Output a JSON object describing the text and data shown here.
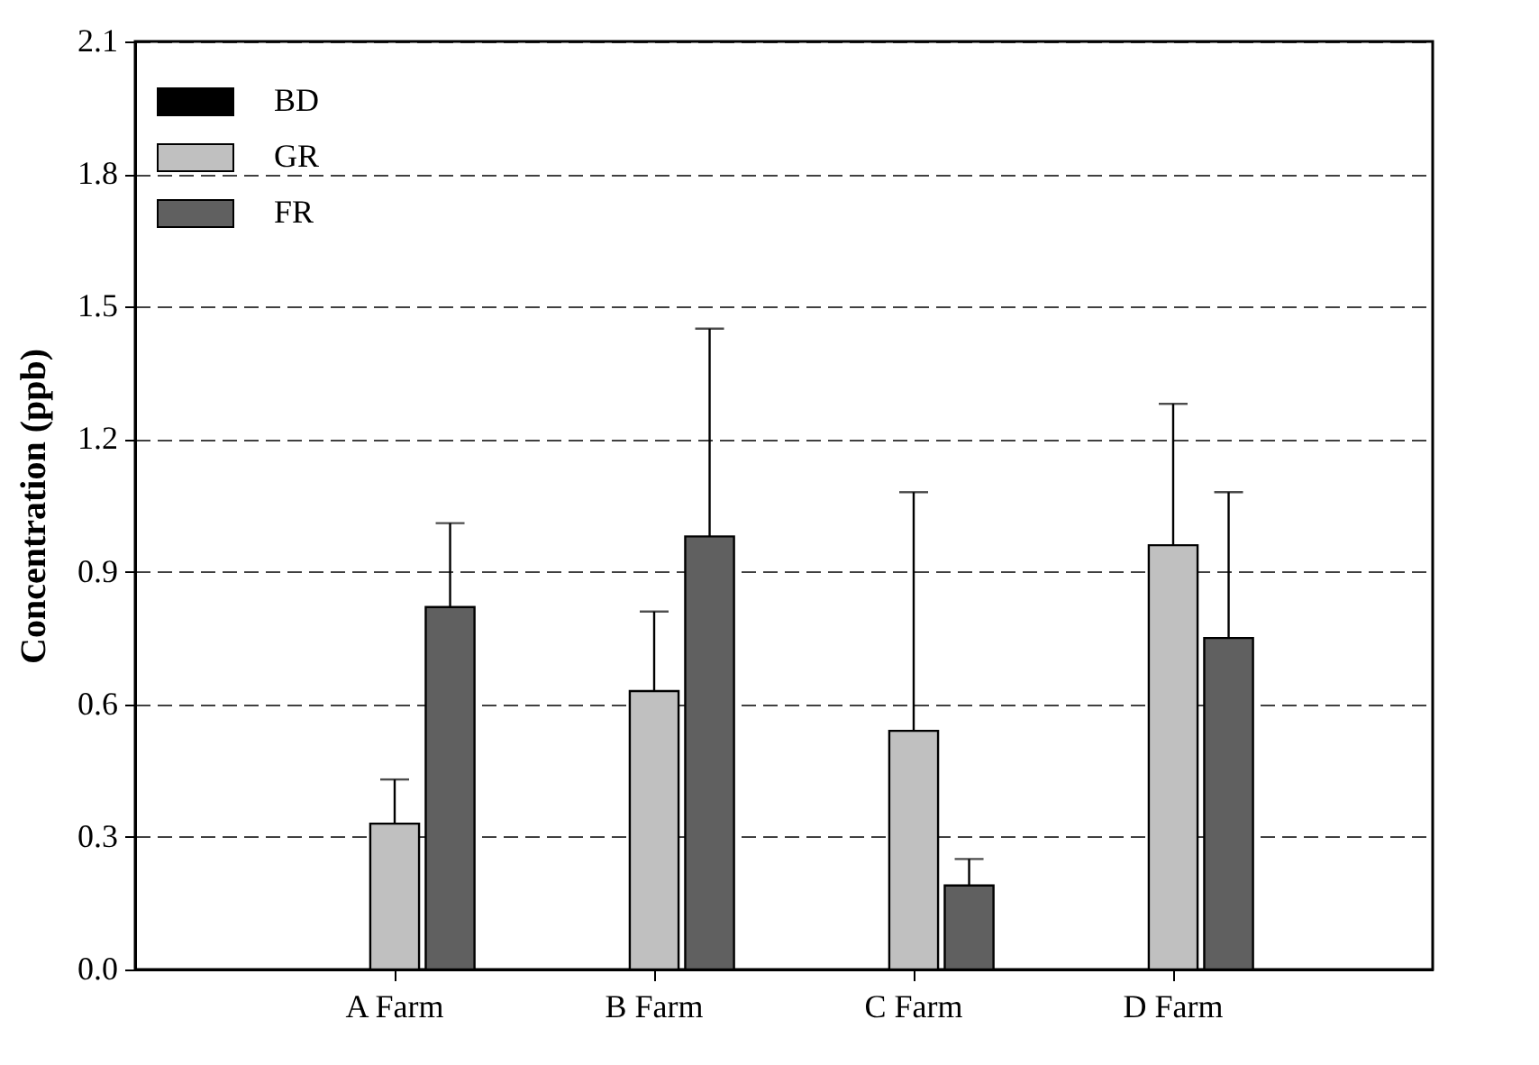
{
  "chart_data": {
    "type": "bar",
    "ylabel": "Concentration (ppb)",
    "categories": [
      "A Farm",
      "B Farm",
      "C Farm",
      "D Farm"
    ],
    "series": [
      {
        "name": "BD",
        "color": "#000000",
        "values": [
          null,
          null,
          null,
          null
        ]
      },
      {
        "name": "GR",
        "color": "#c0c0c0",
        "values": [
          0.33,
          0.63,
          0.54,
          0.96
        ],
        "errors": [
          [
            0.33,
            0.43
          ],
          [
            0.63,
            0.81
          ],
          [
            0.54,
            1.08
          ],
          [
            0.96,
            1.28
          ]
        ]
      },
      {
        "name": "FR",
        "color": "#606060",
        "values": [
          0.82,
          0.98,
          0.19,
          0.75
        ],
        "errors": [
          [
            0.82,
            1.01
          ],
          [
            0.98,
            1.45
          ],
          [
            0.19,
            0.25
          ],
          [
            0.75,
            1.08
          ]
        ]
      }
    ],
    "ylim": [
      0,
      2.1
    ],
    "yticks": [
      {
        "value": 0,
        "label": "0.0"
      },
      0.3,
      0.6,
      0.9,
      1.2,
      1.5,
      1.8,
      2.1
    ],
    "grid": "y",
    "line_style": "dashed",
    "legend": "top left"
  }
}
